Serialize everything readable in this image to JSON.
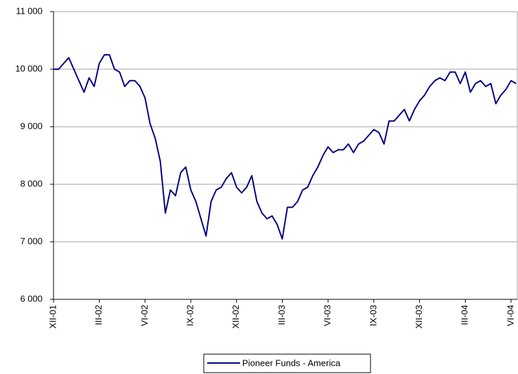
{
  "chart_data": {
    "type": "line",
    "categories": [
      "XII-01",
      null,
      null,
      null,
      null,
      null,
      null,
      null,
      null,
      "III-02",
      null,
      null,
      null,
      null,
      null,
      null,
      null,
      null,
      "VI-02",
      null,
      null,
      null,
      null,
      null,
      null,
      null,
      null,
      "IX-02",
      null,
      null,
      null,
      null,
      null,
      null,
      null,
      null,
      "XII-02",
      null,
      null,
      null,
      null,
      null,
      null,
      null,
      null,
      "III-03",
      null,
      null,
      null,
      null,
      null,
      null,
      null,
      null,
      "VI-03",
      null,
      null,
      null,
      null,
      null,
      null,
      null,
      null,
      "IX-03",
      null,
      null,
      null,
      null,
      null,
      null,
      null,
      null,
      "XII-03",
      null,
      null,
      null,
      null,
      null,
      null,
      null,
      null,
      "III-04",
      null,
      null,
      null,
      null,
      null,
      null,
      null,
      null,
      "VI-04",
      null
    ],
    "series": [
      {
        "name": "Pioneer Funds - America",
        "color": "#000080",
        "values": [
          10000,
          10000,
          10100,
          10200,
          10000,
          9800,
          9600,
          9850,
          9700,
          10100,
          10250,
          10250,
          10000,
          9950,
          9700,
          9800,
          9800,
          9700,
          9500,
          9050,
          8800,
          8400,
          7500,
          7900,
          7800,
          8200,
          8300,
          7900,
          7700,
          7400,
          7100,
          7700,
          7900,
          7950,
          8100,
          8200,
          7950,
          7850,
          7950,
          8150,
          7700,
          7500,
          7400,
          7450,
          7300,
          7050,
          7600,
          7600,
          7700,
          7900,
          7950,
          8150,
          8300,
          8500,
          8650,
          8550,
          8600,
          8600,
          8700,
          8550,
          8700,
          8750,
          8850,
          8950,
          8900,
          8700,
          9100,
          9100,
          9200,
          9300,
          9100,
          9300,
          9450,
          9550,
          9700,
          9800,
          9850,
          9800,
          9950,
          9950,
          9750,
          9950,
          9600,
          9750,
          9800,
          9700,
          9750,
          9400,
          9550,
          9650,
          9800,
          9750
        ]
      }
    ],
    "ylim": [
      6000,
      11000
    ],
    "yticks": [
      {
        "value": 6000,
        "label": "6 000"
      },
      {
        "value": 7000,
        "label": "7 000"
      },
      {
        "value": 8000,
        "label": "8 000"
      },
      {
        "value": 9000,
        "label": "9 000"
      },
      {
        "value": 10000,
        "label": "10 000"
      },
      {
        "value": 11000,
        "label": "11 000"
      }
    ],
    "grid": true,
    "legend": "bottom"
  }
}
